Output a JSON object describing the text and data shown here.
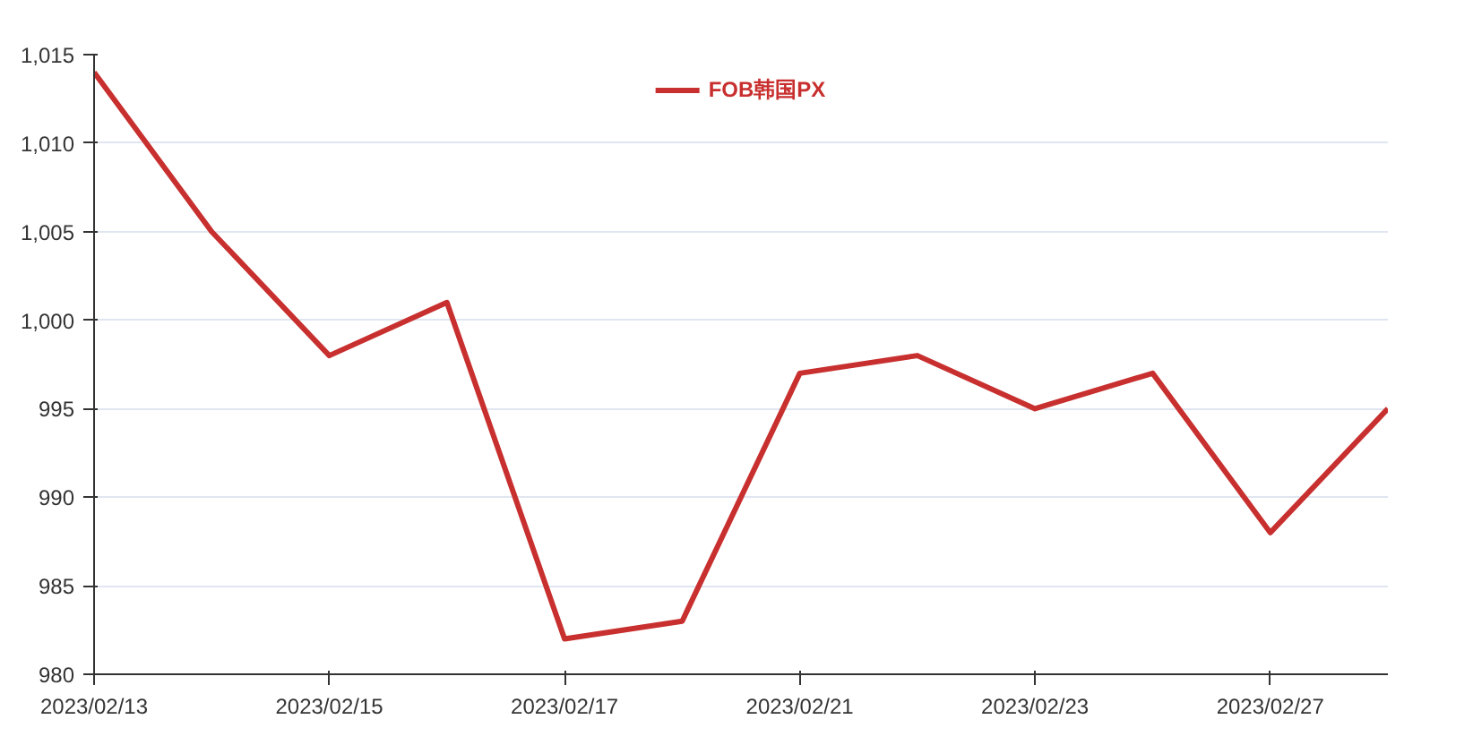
{
  "chart_data": {
    "type": "line",
    "categories": [
      "2023/02/13",
      null,
      "2023/02/15",
      null,
      "2023/02/17",
      null,
      "2023/02/21",
      null,
      "2023/02/23",
      null,
      "2023/02/27",
      null
    ],
    "series": [
      {
        "name": "FOB韩国PX",
        "color": "#c8302f",
        "values": [
          1014,
          1005,
          998,
          1001,
          982,
          983,
          997,
          998,
          995,
          997,
          988,
          995
        ]
      }
    ],
    "ylim": [
      980,
      1015
    ],
    "yticks": [
      980,
      985,
      990,
      995,
      {
        "value": 1000,
        "label": "1,000"
      },
      {
        "value": 1005,
        "label": "1,005"
      },
      {
        "value": 1010,
        "label": "1,010"
      },
      {
        "value": 1015,
        "label": "1,015"
      }
    ],
    "grid": "y",
    "legend": "top",
    "marker": "none",
    "line_style": "solid"
  }
}
